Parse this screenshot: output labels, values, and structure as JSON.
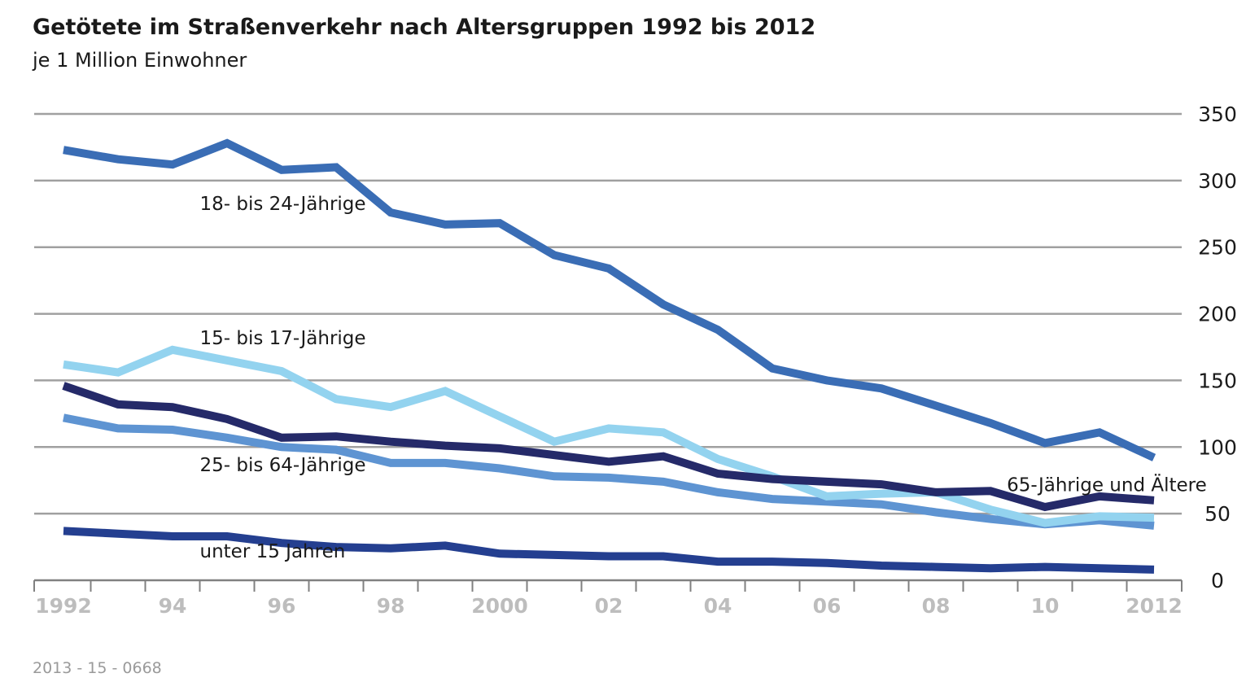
{
  "chart_data": {
    "type": "line",
    "title": "Getötete im Straßenverkehr nach Altersgruppen 1992 bis 2012",
    "subtitle": "je 1 Million Einwohner",
    "xlabel": "",
    "ylabel": "",
    "x": [
      1992,
      1993,
      1994,
      1995,
      1996,
      1997,
      1998,
      1999,
      2000,
      2001,
      2002,
      2003,
      2004,
      2005,
      2006,
      2007,
      2008,
      2009,
      2010,
      2011,
      2012
    ],
    "x_tick_labels": [
      "1992",
      "94",
      "96",
      "98",
      "2000",
      "02",
      "04",
      "06",
      "08",
      "10",
      "2012"
    ],
    "x_tick_years": [
      1992,
      1994,
      1996,
      1998,
      2000,
      2002,
      2004,
      2006,
      2008,
      2010,
      2012
    ],
    "ylim": [
      0,
      350
    ],
    "y_ticks": [
      0,
      50,
      100,
      150,
      200,
      250,
      300,
      350
    ],
    "grid": true,
    "y_axis_position": "right",
    "series": [
      {
        "name": "18- bis 24-Jährige",
        "color": "#3a6db5",
        "label_anchor_year": 1994.5,
        "label_anchor_value": 278,
        "values": [
          323,
          316,
          312,
          328,
          308,
          310,
          276,
          267,
          268,
          244,
          234,
          207,
          188,
          159,
          150,
          144,
          131,
          118,
          103,
          111,
          92
        ]
      },
      {
        "name": "15- bis 17-Jährige",
        "color": "#93d3ef",
        "label_anchor_year": 1994.5,
        "label_anchor_value": 177,
        "values": [
          162,
          156,
          173,
          165,
          157,
          136,
          130,
          142,
          123,
          104,
          114,
          111,
          91,
          78,
          63,
          65,
          66,
          53,
          43,
          48,
          47
        ]
      },
      {
        "name": "25- bis 64-Jährige",
        "color": "#5e94d2",
        "label_anchor_year": 1994.5,
        "label_anchor_value": 82,
        "values": [
          122,
          114,
          113,
          107,
          100,
          98,
          88,
          88,
          84,
          78,
          77,
          74,
          66,
          61,
          59,
          57,
          51,
          46,
          42,
          45,
          41
        ]
      },
      {
        "name": "65-Jährige und Ältere",
        "color": "#252a69",
        "label_anchor_year": 2009.3,
        "label_anchor_value": 67,
        "values": [
          146,
          132,
          130,
          121,
          107,
          108,
          104,
          101,
          99,
          94,
          89,
          93,
          80,
          76,
          74,
          72,
          66,
          67,
          55,
          63,
          60
        ]
      },
      {
        "name": "unter 15 Jahren",
        "color": "#243f90",
        "label_anchor_year": 1994.5,
        "label_anchor_value": 17,
        "values": [
          37,
          35,
          33,
          33,
          28,
          25,
          24,
          26,
          20,
          19,
          18,
          18,
          14,
          14,
          13,
          11,
          10,
          9,
          10,
          9,
          8
        ]
      }
    ],
    "source_note": "2013 - 15 - 0668"
  }
}
